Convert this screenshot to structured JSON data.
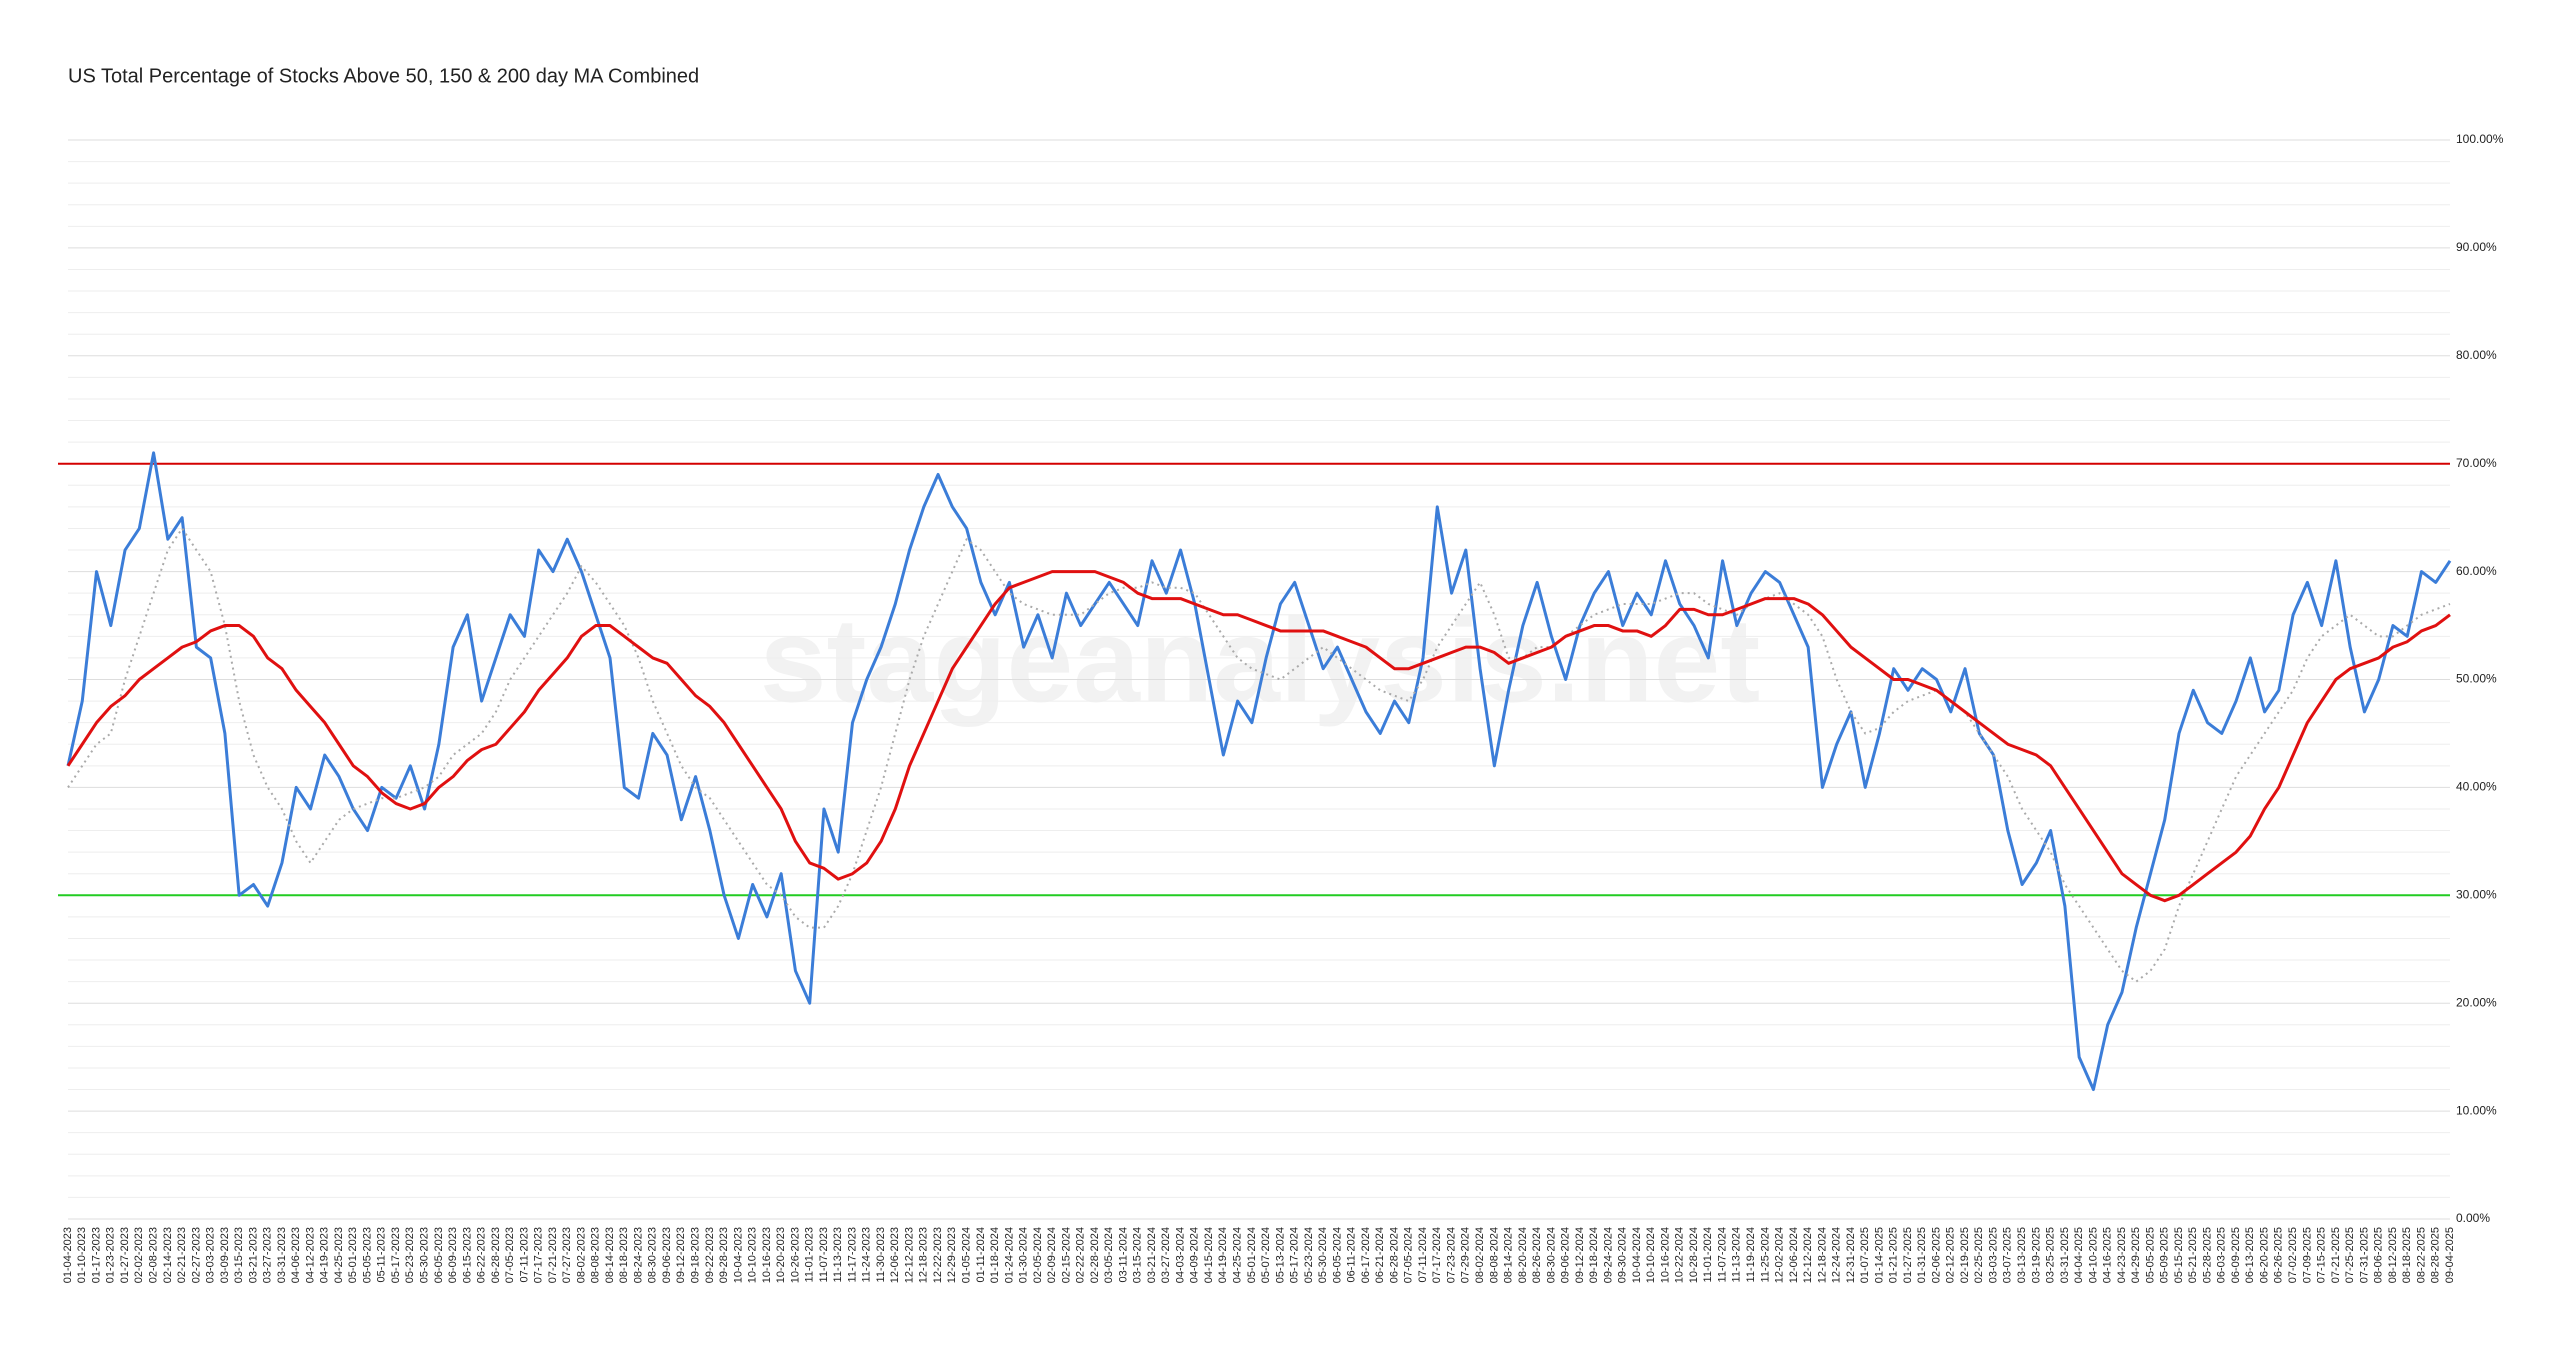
{
  "chart_data": {
    "type": "line",
    "title": "US Total Percentage of Stocks Above 50, 150 & 200 day MA Combined",
    "watermark": "stageanalysis.net",
    "categories": [
      "01-04-2023",
      "01-10-2023",
      "01-17-2023",
      "01-23-2023",
      "01-27-2023",
      "02-02-2023",
      "02-08-2023",
      "02-14-2023",
      "02-21-2023",
      "02-27-2023",
      "03-03-2023",
      "03-09-2023",
      "03-15-2023",
      "03-21-2023",
      "03-27-2023",
      "03-31-2023",
      "04-06-2023",
      "04-12-2023",
      "04-19-2023",
      "04-25-2023",
      "05-01-2023",
      "05-05-2023",
      "05-11-2023",
      "05-17-2023",
      "05-23-2023",
      "05-30-2023",
      "06-05-2023",
      "06-09-2023",
      "06-15-2023",
      "06-22-2023",
      "06-28-2023",
      "07-05-2023",
      "07-11-2023",
      "07-17-2023",
      "07-21-2023",
      "07-27-2023",
      "08-02-2023",
      "08-08-2023",
      "08-14-2023",
      "08-18-2023",
      "08-24-2023",
      "08-30-2023",
      "09-06-2023",
      "09-12-2023",
      "09-18-2023",
      "09-22-2023",
      "09-28-2023",
      "10-04-2023",
      "10-10-2023",
      "10-16-2023",
      "10-20-2023",
      "10-26-2023",
      "11-01-2023",
      "11-07-2023",
      "11-13-2023",
      "11-17-2023",
      "11-24-2023",
      "11-30-2023",
      "12-06-2023",
      "12-12-2023",
      "12-18-2023",
      "12-22-2023",
      "12-29-2023",
      "01-05-2024",
      "01-11-2024",
      "01-18-2024",
      "01-24-2024",
      "01-30-2024",
      "02-05-2024",
      "02-09-2024",
      "02-15-2024",
      "02-22-2024",
      "02-28-2024",
      "03-05-2024",
      "03-11-2024",
      "03-15-2024",
      "03-21-2024",
      "03-27-2024",
      "04-03-2024",
      "04-09-2024",
      "04-15-2024",
      "04-19-2024",
      "04-25-2024",
      "05-01-2024",
      "05-07-2024",
      "05-13-2024",
      "05-17-2024",
      "05-23-2024",
      "05-30-2024",
      "06-05-2024",
      "06-11-2024",
      "06-17-2024",
      "06-21-2024",
      "06-28-2024",
      "07-05-2024",
      "07-11-2024",
      "07-17-2024",
      "07-23-2024",
      "07-29-2024",
      "08-02-2024",
      "08-08-2024",
      "08-14-2024",
      "08-20-2024",
      "08-26-2024",
      "08-30-2024",
      "09-06-2024",
      "09-12-2024",
      "09-18-2024",
      "09-24-2024",
      "09-30-2024",
      "10-04-2024",
      "10-10-2024",
      "10-16-2024",
      "10-22-2024",
      "10-28-2024",
      "11-01-2024",
      "11-07-2024",
      "11-13-2024",
      "11-19-2024",
      "11-25-2024",
      "12-02-2024",
      "12-06-2024",
      "12-12-2024",
      "12-18-2024",
      "12-24-2024",
      "12-31-2024",
      "01-07-2025",
      "01-14-2025",
      "01-21-2025",
      "01-27-2025",
      "01-31-2025",
      "02-06-2025",
      "02-12-2025",
      "02-19-2025",
      "02-25-2025",
      "03-03-2025",
      "03-07-2025",
      "03-13-2025",
      "03-19-2025",
      "03-25-2025",
      "03-31-2025",
      "04-04-2025",
      "04-10-2025",
      "04-16-2025",
      "04-23-2025",
      "04-29-2025",
      "05-05-2025",
      "05-09-2025",
      "05-15-2025",
      "05-21-2025",
      "05-28-2025",
      "06-03-2025",
      "06-09-2025",
      "06-13-2025",
      "06-20-2025",
      "06-26-2025",
      "07-02-2025",
      "07-09-2025",
      "07-15-2025",
      "07-21-2025",
      "07-25-2025",
      "07-31-2025",
      "08-06-2025",
      "08-12-2025",
      "08-18-2025",
      "08-22-2025",
      "08-28-2025",
      "09-04-2025"
    ],
    "series": [
      {
        "color": "#3b7dd8",
        "style": "solid",
        "width": 3,
        "values": [
          42,
          48,
          60,
          55,
          62,
          64,
          71,
          63,
          65,
          53,
          52,
          45,
          30,
          31,
          29,
          33,
          40,
          38,
          43,
          41,
          38,
          36,
          40,
          39,
          42,
          38,
          44,
          53,
          56,
          48,
          52,
          56,
          54,
          62,
          60,
          63,
          60,
          56,
          52,
          40,
          39,
          45,
          43,
          37,
          41,
          36,
          30,
          26,
          31,
          28,
          32,
          23,
          20,
          38,
          34,
          46,
          50,
          53,
          57,
          62,
          66,
          69,
          66,
          64,
          59,
          56,
          59,
          53,
          56,
          52,
          58,
          55,
          57,
          59,
          57,
          55,
          61,
          58,
          62,
          57,
          50,
          43,
          48,
          46,
          52,
          57,
          59,
          55,
          51,
          53,
          50,
          47,
          45,
          48,
          46,
          52,
          66,
          58,
          62,
          51,
          42,
          49,
          55,
          59,
          54,
          50,
          55,
          58,
          60,
          55,
          58,
          56,
          61,
          57,
          55,
          52,
          61,
          55,
          58,
          60,
          59,
          56,
          53,
          40,
          44,
          47,
          40,
          45,
          51,
          49,
          51,
          50,
          47,
          51,
          45,
          43,
          36,
          31,
          33,
          36,
          29,
          15,
          12,
          18,
          21,
          27,
          32,
          37,
          45,
          49,
          46,
          45,
          48,
          52,
          47,
          49,
          56,
          59,
          55,
          61,
          53,
          47,
          50,
          55,
          54,
          60,
          59,
          61
        ]
      },
      {
        "color": "#aaaaaa",
        "style": "dotted",
        "width": 2,
        "values": [
          40,
          42,
          44,
          45,
          50,
          54,
          58,
          62,
          64,
          62,
          60,
          55,
          48,
          43,
          40,
          38,
          35,
          33,
          35,
          37,
          38,
          38.5,
          39,
          39,
          39.5,
          40,
          41,
          43,
          44,
          45,
          47,
          50,
          52,
          54,
          56,
          58,
          60.5,
          59,
          57,
          55,
          52,
          48,
          45,
          42,
          40,
          39,
          37,
          35,
          33,
          31,
          30,
          28,
          27,
          27,
          29,
          32,
          36,
          40,
          45,
          50,
          54,
          57,
          60,
          63,
          62,
          60,
          58,
          57,
          56.5,
          56,
          56,
          56,
          57,
          58,
          58.5,
          58.5,
          59,
          58.5,
          58.5,
          58,
          56,
          54,
          52,
          51,
          50.5,
          50,
          51,
          52,
          53,
          52,
          51,
          50,
          49,
          48.5,
          48,
          50,
          53,
          55,
          57,
          59,
          56,
          52,
          52,
          53,
          53,
          54,
          55,
          56,
          56.5,
          57,
          57,
          57,
          57.5,
          58,
          58,
          57,
          56.5,
          56,
          57,
          57.5,
          58,
          57,
          56,
          54,
          50,
          47,
          45,
          45.5,
          47,
          48,
          48.5,
          49,
          48,
          47,
          45,
          43,
          41,
          38,
          36,
          34,
          31,
          29,
          27,
          25,
          23,
          22,
          23,
          25,
          29,
          32,
          35,
          38,
          41,
          43,
          45,
          47,
          49,
          52,
          54,
          55,
          56,
          55,
          54,
          54,
          55,
          56,
          56.5,
          57
        ]
      },
      {
        "color": "#e01010",
        "style": "solid",
        "width": 3,
        "values": [
          42,
          44,
          46,
          47.5,
          48.5,
          50,
          51,
          52,
          53,
          53.5,
          54.5,
          55,
          55,
          54,
          52,
          51,
          49,
          47.5,
          46,
          44,
          42,
          41,
          39.5,
          38.5,
          38,
          38.5,
          40,
          41,
          42.5,
          43.5,
          44,
          45.5,
          47,
          49,
          50.5,
          52,
          54,
          55,
          55,
          54,
          53,
          52,
          51.5,
          50,
          48.5,
          47.5,
          46,
          44,
          42,
          40,
          38,
          35,
          33,
          32.5,
          31.5,
          32,
          33,
          35,
          38,
          42,
          45,
          48,
          51,
          53,
          55,
          57,
          58.5,
          59,
          59.5,
          60,
          60,
          60,
          60,
          59.5,
          59,
          58,
          57.5,
          57.5,
          57.5,
          57,
          56.5,
          56,
          56,
          55.5,
          55,
          54.5,
          54.5,
          54.5,
          54.5,
          54,
          53.5,
          53,
          52,
          51,
          51,
          51.5,
          52,
          52.5,
          53,
          53,
          52.5,
          51.5,
          52,
          52.5,
          53,
          54,
          54.5,
          55,
          55,
          54.5,
          54.5,
          54,
          55,
          56.5,
          56.5,
          56,
          56,
          56.5,
          57,
          57.5,
          57.5,
          57.5,
          57,
          56,
          54.5,
          53,
          52,
          51,
          50,
          50,
          49.5,
          49,
          48,
          47,
          46,
          45,
          44,
          43.5,
          43,
          42,
          40,
          38,
          36,
          34,
          32,
          31,
          30,
          29.5,
          30,
          31,
          32,
          33,
          34,
          35.5,
          38,
          40,
          43,
          46,
          48,
          50,
          51,
          51.5,
          52,
          53,
          53.5,
          54.5,
          55,
          56
        ]
      }
    ],
    "ylim": [
      0,
      100
    ],
    "yticks": [
      {
        "value": 0,
        "label": "0.00%"
      },
      {
        "value": 10,
        "label": "10.00%"
      },
      {
        "value": 20,
        "label": "20.00%"
      },
      {
        "value": 30,
        "label": "30.00%"
      },
      {
        "value": 40,
        "label": "40.00%"
      },
      {
        "value": 50,
        "label": "50.00%"
      },
      {
        "value": 60,
        "label": "60.00%"
      },
      {
        "value": 70,
        "label": "70.00%"
      },
      {
        "value": 80,
        "label": "80.00%"
      },
      {
        "value": 90,
        "label": "90.00%"
      },
      {
        "value": 100,
        "label": "100.00%"
      }
    ],
    "minor_yticks": [
      2,
      4,
      6,
      8,
      12,
      14,
      16,
      18,
      22,
      24,
      26,
      28,
      32,
      34,
      36,
      38,
      42,
      44,
      46,
      48,
      52,
      54,
      56,
      58,
      62,
      64,
      66,
      68,
      72,
      74,
      76,
      78,
      82,
      84,
      86,
      88,
      92,
      94,
      96,
      98
    ],
    "grid": true,
    "reference_lines": [
      {
        "value": 70,
        "color": "#d40000"
      },
      {
        "value": 30,
        "color": "#22cc22"
      }
    ]
  }
}
